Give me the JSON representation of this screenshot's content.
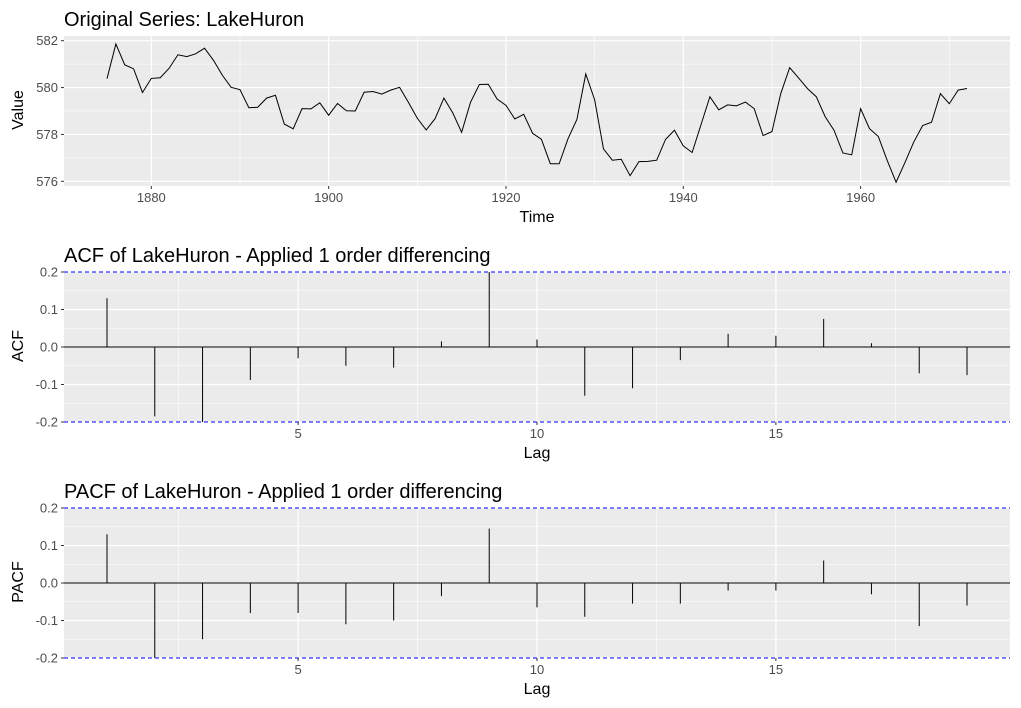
{
  "chart_data": [
    {
      "type": "line",
      "title": "Original Series: LakeHuron",
      "xlabel": "Time",
      "ylabel": "Value",
      "xlim": [
        1870.15,
        1976.85
      ],
      "ylim": [
        575.8,
        582.2
      ],
      "xticks": [
        1880,
        1900,
        1920,
        1940,
        1960
      ],
      "yticks": [
        576,
        578,
        580,
        582
      ],
      "grid": true,
      "x": [
        1875,
        1876,
        1877,
        1878,
        1879,
        1880,
        1881,
        1882,
        1883,
        1884,
        1885,
        1886,
        1887,
        1888,
        1889,
        1890,
        1891,
        1892,
        1893,
        1894,
        1895,
        1896,
        1897,
        1898,
        1899,
        1900,
        1901,
        1902,
        1903,
        1904,
        1905,
        1906,
        1907,
        1908,
        1909,
        1910,
        1911,
        1912,
        1913,
        1914,
        1915,
        1916,
        1917,
        1918,
        1919,
        1920,
        1921,
        1922,
        1923,
        1924,
        1925,
        1926,
        1927,
        1928,
        1929,
        1930,
        1931,
        1932,
        1933,
        1934,
        1935,
        1936,
        1937,
        1938,
        1939,
        1940,
        1941,
        1942,
        1943,
        1944,
        1945,
        1946,
        1947,
        1948,
        1949,
        1950,
        1951,
        1952,
        1953,
        1954,
        1955,
        1956,
        1957,
        1958,
        1959,
        1960,
        1961,
        1962,
        1963,
        1964,
        1965,
        1966,
        1967,
        1968,
        1969,
        1970,
        1971,
        1972
      ],
      "y": [
        580.38,
        581.86,
        580.97,
        580.8,
        579.79,
        580.39,
        580.42,
        580.82,
        581.4,
        581.32,
        581.44,
        581.68,
        581.17,
        580.53,
        580.01,
        579.91,
        579.14,
        579.16,
        579.55,
        579.67,
        578.44,
        578.24,
        579.1,
        579.09,
        579.35,
        578.82,
        579.32,
        579.01,
        579,
        579.8,
        579.83,
        579.72,
        579.89,
        580.01,
        579.37,
        578.69,
        578.19,
        578.67,
        579.55,
        578.92,
        578.09,
        579.37,
        580.13,
        580.14,
        579.51,
        579.24,
        578.66,
        578.86,
        578.05,
        577.79,
        576.75,
        576.75,
        577.82,
        578.64,
        580.58,
        579.48,
        577.38,
        576.9,
        576.94,
        576.24,
        576.84,
        576.85,
        576.9,
        577.79,
        578.18,
        577.51,
        577.23,
        578.42,
        579.61,
        579.05,
        579.26,
        579.22,
        579.38,
        579.1,
        577.95,
        578.12,
        579.75,
        580.85,
        580.41,
        579.96,
        579.61,
        578.76,
        578.18,
        577.21,
        577.13,
        579.1,
        578.25,
        577.91,
        576.89,
        575.96,
        576.8,
        577.68,
        578.38,
        578.52,
        579.74,
        579.31,
        579.89,
        579.96
      ]
    },
    {
      "type": "bar",
      "title": "ACF of LakeHuron - Applied 1 order differencing",
      "xlabel": "Lag",
      "ylabel": "ACF",
      "xlim": [
        0.1,
        19.9
      ],
      "ylim": [
        -0.2,
        0.2
      ],
      "xticks": [
        5,
        10,
        15
      ],
      "yticks": [
        -0.2,
        -0.1,
        0.0,
        0.1,
        0.2
      ],
      "yticklabels": [
        "-0.2",
        "-0.1",
        "0.0",
        "0.1",
        "0.2"
      ],
      "confidence_bounds": [
        -0.2,
        0.2
      ],
      "grid": true,
      "lags": [
        1,
        2,
        3,
        4,
        5,
        6,
        7,
        8,
        9,
        10,
        11,
        12,
        13,
        14,
        15,
        16,
        17,
        18,
        19
      ],
      "values": [
        0.13,
        -0.185,
        -0.2,
        -0.088,
        -0.03,
        -0.05,
        -0.055,
        0.015,
        0.2,
        0.02,
        -0.13,
        -0.11,
        -0.035,
        0.035,
        0.03,
        0.075,
        0.01,
        -0.07,
        -0.075
      ]
    },
    {
      "type": "bar",
      "title": "PACF of LakeHuron - Applied 1 order differencing",
      "xlabel": "Lag",
      "ylabel": "PACF",
      "xlim": [
        0.1,
        19.9
      ],
      "ylim": [
        -0.2,
        0.2
      ],
      "xticks": [
        5,
        10,
        15
      ],
      "yticks": [
        -0.2,
        -0.1,
        0.0,
        0.1,
        0.2
      ],
      "yticklabels": [
        "-0.2",
        "-0.1",
        "0.0",
        "0.1",
        "0.2"
      ],
      "confidence_bounds": [
        -0.2,
        0.2
      ],
      "grid": true,
      "lags": [
        1,
        2,
        3,
        4,
        5,
        6,
        7,
        8,
        9,
        10,
        11,
        12,
        13,
        14,
        15,
        16,
        17,
        18,
        19
      ],
      "values": [
        0.13,
        -0.2,
        -0.15,
        -0.08,
        -0.08,
        -0.11,
        -0.1,
        -0.035,
        0.145,
        -0.065,
        -0.09,
        -0.055,
        -0.055,
        -0.02,
        -0.02,
        0.06,
        -0.03,
        -0.115,
        -0.06
      ]
    }
  ],
  "colors": {
    "panel_bg": "#ebebeb",
    "grid_major": "#ffffff",
    "line": "#000000",
    "confidence_line": "#0000ff"
  }
}
